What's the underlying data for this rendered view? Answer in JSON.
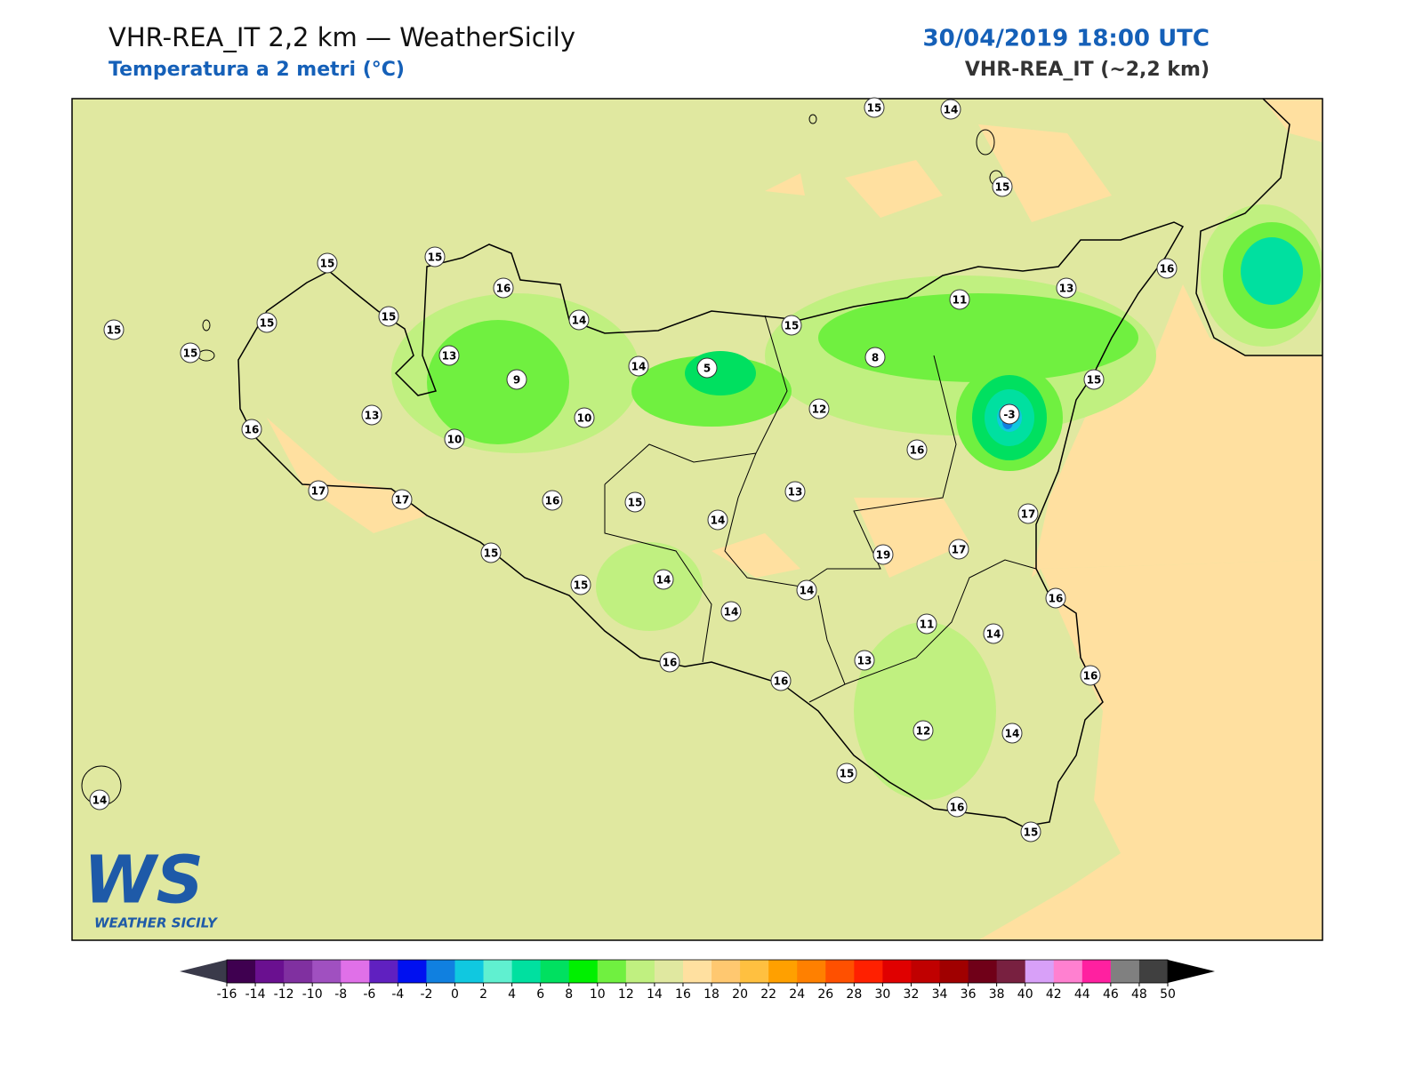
{
  "header": {
    "title": "VHR-REA_IT 2,2 km — WeatherSicily",
    "subtitle": "Temperatura a 2 metri (°C)",
    "datetime": "30/04/2019 18:00 UTC",
    "model": "VHR-REA_IT (~2,2 km)"
  },
  "map": {
    "stations": [
      15,
      14,
      15,
      15,
      15,
      15,
      15,
      15,
      15,
      16,
      14,
      13,
      9,
      14,
      5,
      15,
      8,
      11,
      13,
      16,
      15,
      -3,
      12,
      16,
      13,
      10,
      10,
      16,
      17,
      17,
      16,
      15,
      14,
      13,
      17,
      17,
      19,
      15,
      15,
      14,
      14,
      14,
      16,
      11,
      14,
      13,
      16,
      16,
      16,
      12,
      14,
      15,
      16,
      15,
      14
    ]
  },
  "colorbar": {
    "ticks": [
      -16,
      -14,
      -12,
      -10,
      -8,
      -6,
      -4,
      -2,
      0,
      2,
      4,
      6,
      8,
      10,
      12,
      14,
      16,
      18,
      20,
      22,
      24,
      26,
      28,
      30,
      32,
      34,
      36,
      38,
      40,
      42,
      44,
      46,
      48,
      50
    ],
    "colors": [
      "#3f0050",
      "#6a1090",
      "#8030a0",
      "#a050c0",
      "#e070e8",
      "#6020c0",
      "#0010f0",
      "#1080e0",
      "#10c8e0",
      "#60f0d0",
      "#00e0a0",
      "#00e060",
      "#00f000",
      "#70f040",
      "#c0f080",
      "#e0e8a0",
      "#ffe0a0",
      "#ffc870",
      "#ffc040",
      "#ffa000",
      "#ff8000",
      "#ff5000",
      "#ff2000",
      "#e00000",
      "#c00000",
      "#a00000",
      "#700018",
      "#782040",
      "#d8a0f8",
      "#ff80d0",
      "#ff20a0",
      "#808080",
      "#404040"
    ],
    "under_color": "#3a3a4a",
    "over_color": "#000000"
  },
  "logo": {
    "mark": "WS",
    "name": "WEATHER SICILY"
  }
}
